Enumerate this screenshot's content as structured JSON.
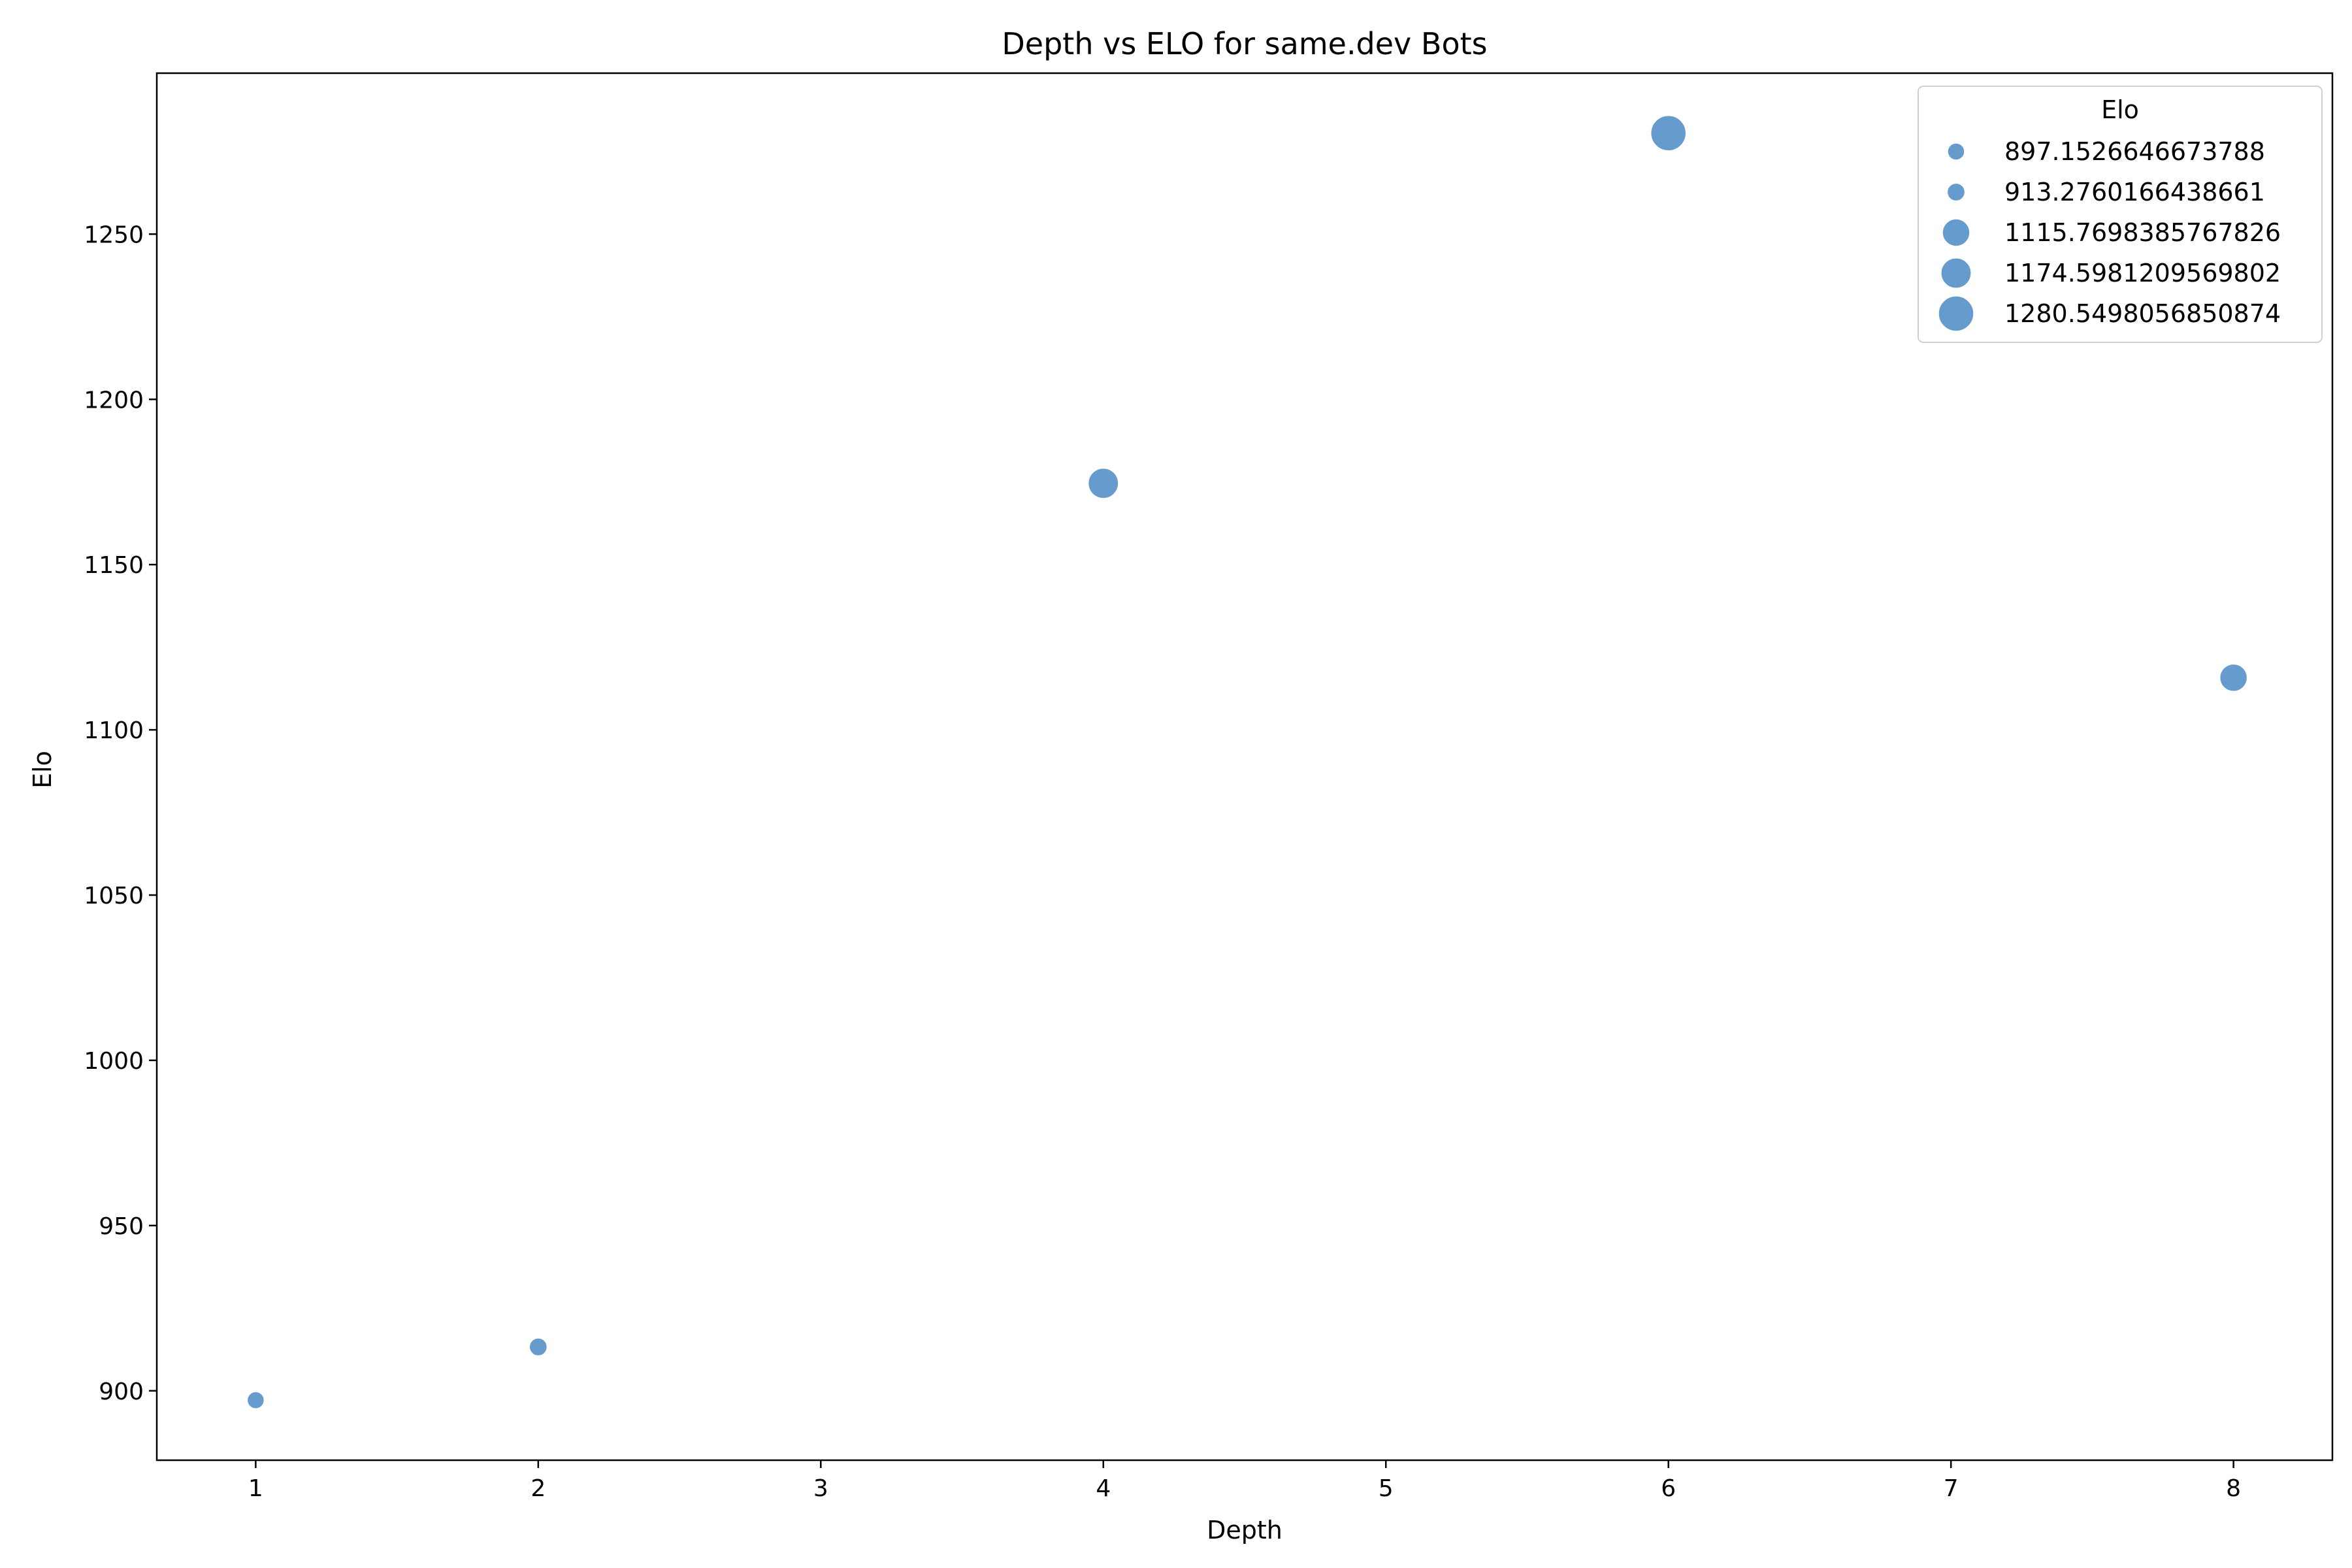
{
  "chart_data": {
    "type": "scatter",
    "title": "Depth vs ELO for same.dev Bots",
    "xlabel": "Depth",
    "ylabel": "Elo",
    "xlim": [
      0.65,
      8.35
    ],
    "ylim": [
      879.0,
      1298.7
    ],
    "xticks": [
      1,
      2,
      3,
      4,
      5,
      6,
      7,
      8
    ],
    "yticks": [
      900,
      950,
      1000,
      1050,
      1100,
      1150,
      1200,
      1250
    ],
    "grid": false,
    "series": [
      {
        "color": "#4a8ac4",
        "points": [
          {
            "x": 1,
            "y": 897.1526646673788
          },
          {
            "x": 2,
            "y": 913.2760166438661
          },
          {
            "x": 4,
            "y": 1174.5981209569802
          },
          {
            "x": 6,
            "y": 1280.5498056850874
          },
          {
            "x": 8,
            "y": 1115.7698385767826
          }
        ]
      }
    ],
    "legend": {
      "title": "Elo",
      "placement": "top-right",
      "entries": [
        "897.1526646673788",
        "913.2760166438661",
        "1115.7698385767826",
        "1174.5981209569802",
        "1280.5498056850874"
      ],
      "values": [
        897.1526646673788,
        913.2760166438661,
        1115.7698385767826,
        1174.5981209569802,
        1280.5498056850874
      ]
    },
    "size_encoding": "Elo"
  }
}
